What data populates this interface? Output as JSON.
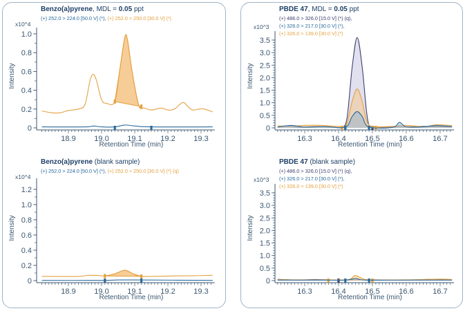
{
  "colors": {
    "orange": "#e3a140",
    "orange_fill": "#f6c88c",
    "blue": "#2a6a9c",
    "navy": "#3d3f6e",
    "navy_fill": "#c8c7e2",
    "axis": "#3a5670",
    "border": "#9fb3c6"
  },
  "panels": {
    "left": {
      "top": {
        "title_bold": "Benzo(a)pyrene",
        "title_rest": ", MDL = ",
        "mdl": "0.05",
        "unit": " ppt",
        "sub1": "(+) 252.0 > 224.0 [50.0 V] (*), ",
        "sub2": "(+) 252.0 > 250.0 [30.0 V] (*)"
      },
      "bottom": {
        "title_bold": "Benzo(a)pyrene",
        "title_rest": " (blank sample)",
        "sub1": "(+) 252.0 > 224.0 [50.0 V] (*), ",
        "sub2": "(+) 252.0 > 250.0 [30.0 V] (*) (q)"
      }
    },
    "right": {
      "top": {
        "title_bold": "PBDE 47",
        "title_rest": ", MDL = ",
        "mdl": "0.05",
        "unit": " ppt",
        "sub1": "(+) 486.0 > 326.0 [15.0 V] (*) (q),",
        "sub2": "(+) 326.0 > 217.0 [30.0 V] (*),",
        "sub3": "(+) 326.0 > 139.0 [30.0 V] (*)"
      },
      "bottom": {
        "title_bold": "PBDE 47",
        "title_rest": " (blank sample)",
        "sub1": "(+) 486.0 > 326.0 [15.0 V] (*) (q),",
        "sub2": "(+) 326.0 > 217.0 [30.0 V] (*),",
        "sub3": "(+) 326.0 > 139.0 [30.0 V] (*)"
      }
    }
  },
  "chart_data": [
    {
      "type": "line",
      "id": "bap",
      "xlabel": "Retention Time (min)",
      "ylabel": "Intensity",
      "yscale_label": "x10^4",
      "xlim": [
        18.82,
        19.335
      ],
      "ylim": [
        0,
        1.0
      ],
      "xticks": [
        "18.9",
        "19.0",
        "19.1",
        "19.2",
        "19.3"
      ],
      "yticks": [
        "0",
        "0.2",
        "0.4",
        "0.6",
        "0.8",
        "1.0"
      ],
      "series": [
        {
          "color": "orange",
          "points": [
            [
              18.82,
              0.18
            ],
            [
              18.85,
              0.16
            ],
            [
              18.875,
              0.16
            ],
            [
              18.9,
              0.185
            ],
            [
              18.93,
              0.2
            ],
            [
              18.95,
              0.25
            ],
            [
              18.965,
              0.5
            ],
            [
              18.975,
              0.57
            ],
            [
              18.985,
              0.5
            ],
            [
              19.0,
              0.3
            ],
            [
              19.015,
              0.26
            ],
            [
              19.04,
              0.28
            ],
            [
              19.055,
              0.62
            ],
            [
              19.07,
              0.96
            ],
            [
              19.078,
              0.94
            ],
            [
              19.092,
              0.6
            ],
            [
              19.112,
              0.24
            ],
            [
              19.13,
              0.21
            ],
            [
              19.15,
              0.19
            ],
            [
              19.18,
              0.21
            ],
            [
              19.2,
              0.19
            ],
            [
              19.22,
              0.2
            ],
            [
              19.245,
              0.27
            ],
            [
              19.262,
              0.22
            ],
            [
              19.275,
              0.19
            ],
            [
              19.295,
              0.2
            ],
            [
              19.31,
              0.2
            ],
            [
              19.335,
              0.17
            ]
          ],
          "integration": [
            19.04,
            19.12
          ],
          "markers": [
            19.04,
            19.12
          ]
        },
        {
          "color": "blue",
          "points": [
            [
              18.82,
              0.01
            ],
            [
              18.95,
              0.01
            ],
            [
              18.975,
              0.02
            ],
            [
              19.0,
              0.01
            ],
            [
              19.04,
              0.01
            ],
            [
              19.07,
              0.03
            ],
            [
              19.1,
              0.02
            ],
            [
              19.15,
              0.01
            ],
            [
              19.335,
              0.01
            ]
          ],
          "markers": [
            19.04,
            19.15
          ]
        }
      ]
    },
    {
      "type": "line",
      "id": "bap-blank",
      "xlabel": "Retention Time (min)",
      "ylabel": "Intensity",
      "yscale_label": "x10^4",
      "xlim": [
        18.82,
        19.335
      ],
      "ylim": [
        0,
        1.2
      ],
      "xticks": [
        "18.9",
        "19.0",
        "19.1",
        "19.2",
        "19.3"
      ],
      "yticks": [
        "0",
        "0.2",
        "0.4",
        "0.6",
        "0.8",
        "1.0",
        "1.2"
      ],
      "series": [
        {
          "color": "orange",
          "points": [
            [
              18.82,
              0.055
            ],
            [
              18.93,
              0.055
            ],
            [
              18.96,
              0.07
            ],
            [
              19.0,
              0.065
            ],
            [
              19.01,
              0.06
            ],
            [
              19.04,
              0.09
            ],
            [
              19.07,
              0.135
            ],
            [
              19.095,
              0.09
            ],
            [
              19.12,
              0.055
            ],
            [
              19.2,
              0.06
            ],
            [
              19.28,
              0.065
            ],
            [
              19.335,
              0.07
            ]
          ],
          "integration": [
            19.01,
            19.12
          ],
          "markers": [
            19.01,
            19.12
          ]
        },
        {
          "color": "blue",
          "points": [
            [
              18.82,
              0.003
            ],
            [
              19.0,
              0.003
            ],
            [
              19.05,
              0.008
            ],
            [
              19.1,
              0.008
            ],
            [
              19.335,
              0.003
            ]
          ],
          "markers": [
            19.01,
            19.12
          ]
        }
      ]
    },
    {
      "type": "line",
      "id": "pbde",
      "xlabel": "Retention Time (min)",
      "ylabel": "Intensity",
      "yscale_label": "x10^3",
      "xlim": [
        16.22,
        16.735
      ],
      "ylim": [
        0,
        3.5
      ],
      "xticks": [
        "16.3",
        "16.4",
        "16.5",
        "16.6",
        "16.7"
      ],
      "yticks": [
        "0",
        "0.5",
        "1.0",
        "1.5",
        "2.0",
        "2.5",
        "3.0",
        "3.5"
      ],
      "series": [
        {
          "color": "navy",
          "points": [
            [
              16.22,
              0.03
            ],
            [
              16.25,
              0.08
            ],
            [
              16.28,
              0.02
            ],
            [
              16.33,
              0.05
            ],
            [
              16.38,
              0.03
            ],
            [
              16.41,
              0.03
            ],
            [
              16.425,
              0.4
            ],
            [
              16.44,
              2.4
            ],
            [
              16.455,
              3.6
            ],
            [
              16.47,
              2.4
            ],
            [
              16.485,
              0.4
            ],
            [
              16.5,
              0.03
            ],
            [
              16.55,
              0.03
            ],
            [
              16.6,
              0.04
            ],
            [
              16.65,
              0.06
            ],
            [
              16.7,
              0.05
            ],
            [
              16.735,
              0.04
            ]
          ],
          "filled": true,
          "markers": [
            16.42,
            16.5
          ]
        },
        {
          "color": "orange",
          "points": [
            [
              16.22,
              0.08
            ],
            [
              16.26,
              0.06
            ],
            [
              16.3,
              0.1
            ],
            [
              16.35,
              0.1
            ],
            [
              16.41,
              0.06
            ],
            [
              16.425,
              0.2
            ],
            [
              16.44,
              1.05
            ],
            [
              16.455,
              1.55
            ],
            [
              16.47,
              1.05
            ],
            [
              16.485,
              0.2
            ],
            [
              16.51,
              0.05
            ],
            [
              16.56,
              0.06
            ],
            [
              16.6,
              0.1
            ],
            [
              16.65,
              0.05
            ],
            [
              16.69,
              0.12
            ],
            [
              16.735,
              0.09
            ]
          ],
          "filled": true,
          "markers": [
            16.41,
            16.51
          ]
        },
        {
          "color": "blue",
          "points": [
            [
              16.22,
              0.03
            ],
            [
              16.26,
              0.1
            ],
            [
              16.3,
              0.03
            ],
            [
              16.36,
              0.05
            ],
            [
              16.42,
              0.03
            ],
            [
              16.44,
              0.45
            ],
            [
              16.455,
              0.65
            ],
            [
              16.47,
              0.45
            ],
            [
              16.49,
              0.03
            ],
            [
              16.56,
              0.02
            ],
            [
              16.58,
              0.22
            ],
            [
              16.6,
              0.04
            ],
            [
              16.65,
              0.04
            ],
            [
              16.69,
              0.09
            ],
            [
              16.735,
              0.05
            ]
          ],
          "filled": true,
          "markers": [
            16.42,
            16.49
          ]
        }
      ]
    },
    {
      "type": "line",
      "id": "pbde-blank",
      "xlabel": "Retention Time (min)",
      "ylabel": "Intensity",
      "yscale_label": "x10^3",
      "xlim": [
        16.22,
        16.735
      ],
      "ylim": [
        0,
        3.5
      ],
      "xticks": [
        "16.3",
        "16.4",
        "16.5",
        "16.6",
        "16.7"
      ],
      "yticks": [
        "0",
        "0.5",
        "1.0",
        "1.5",
        "2.0",
        "2.5",
        "3.0",
        "3.5"
      ],
      "series": [
        {
          "color": "navy",
          "points": [
            [
              16.22,
              0.05
            ],
            [
              16.28,
              0.02
            ],
            [
              16.33,
              0.04
            ],
            [
              16.4,
              0.02
            ],
            [
              16.5,
              0.03
            ],
            [
              16.6,
              0.02
            ],
            [
              16.68,
              0.05
            ],
            [
              16.735,
              0.03
            ]
          ],
          "markers": [
            16.4,
            16.5
          ]
        },
        {
          "color": "orange",
          "points": [
            [
              16.22,
              0.04
            ],
            [
              16.3,
              0.03
            ],
            [
              16.37,
              0.03
            ],
            [
              16.43,
              0.04
            ],
            [
              16.448,
              0.2
            ],
            [
              16.465,
              0.12
            ],
            [
              16.49,
              0.03
            ],
            [
              16.6,
              0.03
            ],
            [
              16.7,
              0.06
            ],
            [
              16.735,
              0.04
            ]
          ],
          "filled": true,
          "markers": [
            16.37,
            16.5
          ]
        },
        {
          "color": "blue",
          "points": [
            [
              16.22,
              0.02
            ],
            [
              16.35,
              0.02
            ],
            [
              16.42,
              0.02
            ],
            [
              16.45,
              0.08
            ],
            [
              16.48,
              0.02
            ],
            [
              16.6,
              0.02
            ],
            [
              16.735,
              0.02
            ]
          ],
          "markers": [
            16.42,
            16.49
          ]
        }
      ]
    }
  ]
}
